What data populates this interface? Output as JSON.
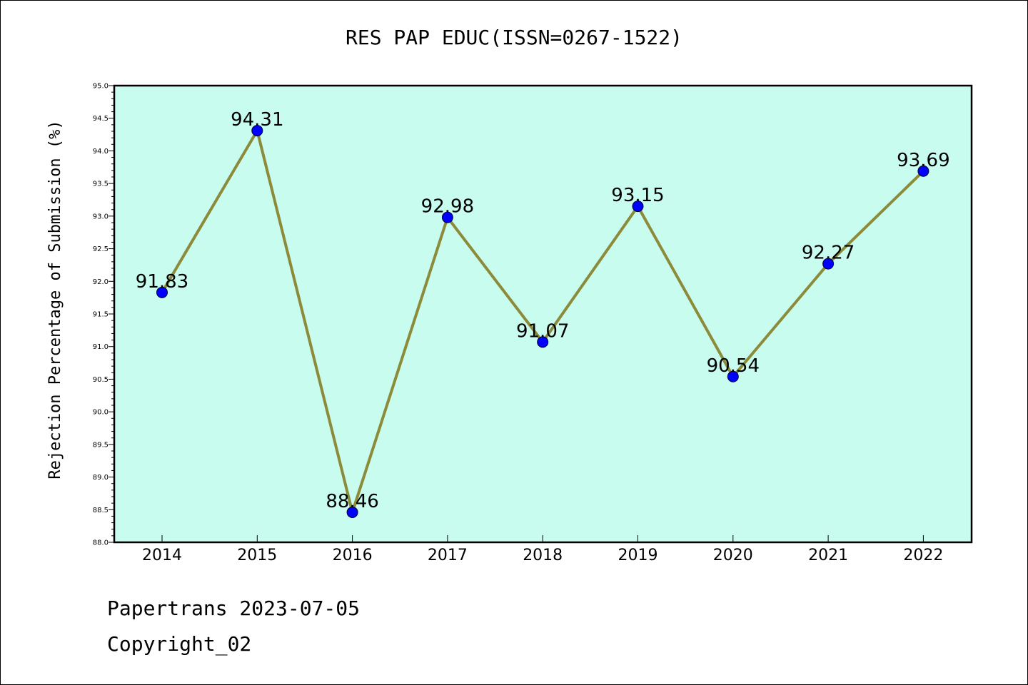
{
  "title": "RES PAP EDUC(ISSN=0267-1522)",
  "footer": {
    "line1": "Papertrans 2023-07-05",
    "line2": "Copyright_02"
  },
  "colors": {
    "plot_background": "#c8fcee",
    "line": "#8b8b3a",
    "marker": "#0000ff",
    "axis": "#000000"
  },
  "chart_data": {
    "type": "line",
    "title": "RES PAP EDUC(ISSN=0267-1522)",
    "xlabel": "",
    "ylabel": "Rejection Percentage of Submission (%)",
    "categories": [
      "2014",
      "2015",
      "2016",
      "2017",
      "2018",
      "2019",
      "2020",
      "2021",
      "2022"
    ],
    "series": [
      {
        "values": [
          91.83,
          94.31,
          88.46,
          92.98,
          91.07,
          93.15,
          90.54,
          92.27,
          93.69
        ],
        "labels": [
          "91.83",
          "94.31",
          "88.46",
          "92.98",
          "91.07",
          "93.15",
          "90.54",
          "92.27",
          "93.69"
        ]
      }
    ],
    "ylim": [
      88.0,
      95.0
    ],
    "yticks": [
      "88.0",
      "88.5",
      "89.0",
      "89.5",
      "90.0",
      "90.5",
      "91.0",
      "91.5",
      "92.0",
      "92.5",
      "93.0",
      "93.5",
      "94.0",
      "94.5",
      "95.0"
    ],
    "grid": false,
    "legend": "none"
  }
}
